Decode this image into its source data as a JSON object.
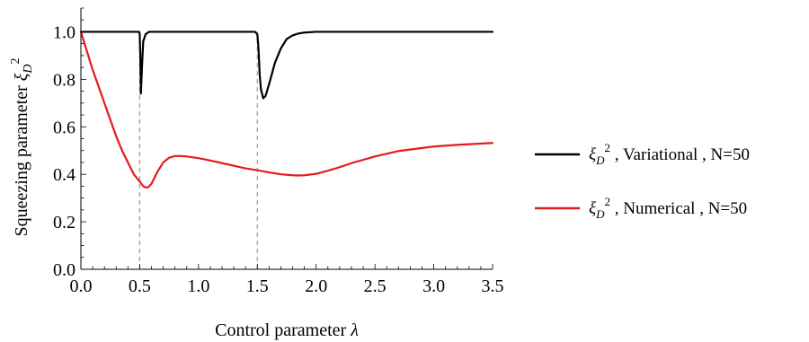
{
  "chart_data": {
    "type": "line",
    "title": "",
    "xlabel": {
      "text": "Control parameter ",
      "symbol": "λ"
    },
    "ylabel": {
      "text": "Squeezing parameter ",
      "symbol": "ξ",
      "subscript": "D",
      "superscript": "2"
    },
    "xlim": [
      0,
      3.5
    ],
    "ylim": [
      0,
      1.1
    ],
    "xticks": [
      0.0,
      0.5,
      1.0,
      1.5,
      2.0,
      2.5,
      3.0,
      3.5
    ],
    "xtick_labels": [
      "0.0",
      "0.5",
      "1.0",
      "1.5",
      "2.0",
      "2.5",
      "3.0",
      "3.5"
    ],
    "yticks": [
      0.0,
      0.2,
      0.4,
      0.6,
      0.8,
      1.0
    ],
    "ytick_labels": [
      "0.0",
      "0.2",
      "0.4",
      "0.6",
      "0.8",
      "1.0"
    ],
    "grid": false,
    "legend_position": "right",
    "reference_lines": [
      0.5,
      1.5
    ],
    "series": [
      {
        "name": "ξD2 , Variational , N=50",
        "legend": {
          "symbol": "ξ",
          "subscript": "D",
          "superscript": "2",
          "text": " , Variational , N=50"
        },
        "color": "#000000",
        "x": [
          0.0,
          0.45,
          0.47,
          0.48,
          0.49,
          0.495,
          0.5,
          0.505,
          0.51,
          0.52,
          0.53,
          0.55,
          0.58,
          0.6,
          0.65,
          0.8,
          1.0,
          1.2,
          1.4,
          1.48,
          1.5,
          1.51,
          1.52,
          1.53,
          1.55,
          1.57,
          1.6,
          1.65,
          1.7,
          1.75,
          1.8,
          1.85,
          1.9,
          2.0,
          2.1,
          2.5,
          3.0,
          3.5
        ],
        "y": [
          1.0,
          1.0,
          1.0,
          1.0,
          1.0,
          1.0,
          0.99,
          0.9,
          0.74,
          0.86,
          0.96,
          0.99,
          1.0,
          1.0,
          1.0,
          1.0,
          1.0,
          1.0,
          1.0,
          1.0,
          0.99,
          0.93,
          0.82,
          0.76,
          0.72,
          0.73,
          0.78,
          0.87,
          0.93,
          0.97,
          0.985,
          0.993,
          0.997,
          1.0,
          1.0,
          1.0,
          1.0,
          1.0
        ]
      },
      {
        "name": "ξD2 , Numerical , N=50",
        "legend": {
          "symbol": "ξ",
          "subscript": "D",
          "superscript": "2",
          "text": " , Numerical , N=50"
        },
        "color": "#e41a1c",
        "x": [
          0.0,
          0.05,
          0.1,
          0.15,
          0.2,
          0.25,
          0.3,
          0.35,
          0.4,
          0.45,
          0.5,
          0.53,
          0.55,
          0.57,
          0.6,
          0.65,
          0.7,
          0.75,
          0.8,
          0.85,
          0.9,
          1.0,
          1.1,
          1.2,
          1.3,
          1.4,
          1.5,
          1.6,
          1.7,
          1.8,
          1.85,
          1.9,
          2.0,
          2.1,
          2.2,
          2.3,
          2.5,
          2.7,
          3.0,
          3.2,
          3.5
        ],
        "y": [
          1.0,
          0.92,
          0.84,
          0.77,
          0.7,
          0.63,
          0.56,
          0.5,
          0.45,
          0.4,
          0.37,
          0.35,
          0.345,
          0.345,
          0.36,
          0.41,
          0.45,
          0.47,
          0.477,
          0.477,
          0.475,
          0.468,
          0.458,
          0.447,
          0.436,
          0.425,
          0.417,
          0.408,
          0.4,
          0.396,
          0.395,
          0.396,
          0.402,
          0.415,
          0.43,
          0.447,
          0.475,
          0.498,
          0.517,
          0.524,
          0.532
        ]
      }
    ]
  }
}
